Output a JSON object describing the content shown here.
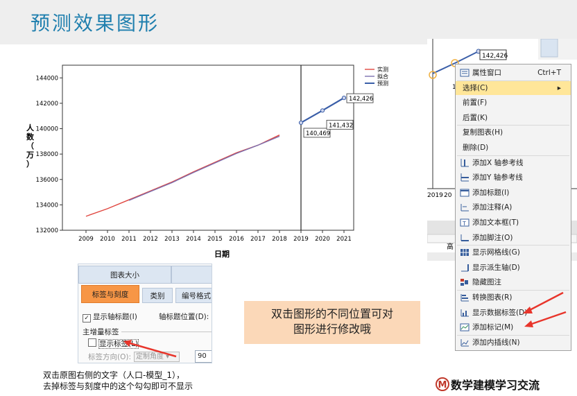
{
  "slide": {
    "title": "预测效果图形"
  },
  "chart_data": {
    "type": "line",
    "xlabel": "日期",
    "ylabel": "人数（万）",
    "x_ticks": [
      "2009",
      "2010",
      "2011",
      "2012",
      "2013",
      "2014",
      "2015",
      "2016",
      "2017",
      "2018",
      "2019",
      "2020",
      "2021"
    ],
    "y_ticks": [
      132000,
      134000,
      136000,
      138000,
      140000,
      142000,
      144000
    ],
    "ylim": [
      132000,
      145000
    ],
    "forecast_origin": "2019",
    "series": [
      {
        "name": "实测",
        "color": "#e0463f",
        "x": [
          2009,
          2010,
          2011,
          2012,
          2013,
          2014,
          2015,
          2016,
          2017,
          2018
        ],
        "y": [
          133100,
          133700,
          134400,
          135100,
          135800,
          136600,
          137350,
          138100,
          138700,
          139500
        ]
      },
      {
        "name": "拟合",
        "color": "#7b70b0",
        "x": [
          2011,
          2012,
          2013,
          2014,
          2015,
          2016,
          2017,
          2018
        ],
        "y": [
          134350,
          135050,
          135750,
          136550,
          137300,
          138050,
          138700,
          139400
        ]
      },
      {
        "name": "预测",
        "color": "#3a5ea8",
        "x": [
          2019,
          2020,
          2021
        ],
        "y": [
          140469,
          141432,
          142426
        ]
      }
    ],
    "data_labels": [
      "140,469",
      "141,432",
      "142,426"
    ],
    "legend": "top-right"
  },
  "dialog": {
    "tabs_row1": [
      "图表大小",
      ""
    ],
    "tabs_row2": [
      "标签与刻度",
      "类别",
      "编号格式"
    ],
    "show_axis_title": "显示轴标题(I)",
    "axis_title_position": "轴标题位置(D):",
    "group_label": "主增量标签",
    "show_labels": "显示标签(L)",
    "label_direction": "标签方向(O):",
    "label_direction_value": "定制角度",
    "angle_value": "90"
  },
  "caption_lines": [
    "双击原图右侧的文字（人口-模型_1），",
    "去掉标签与刻度中的这个勾勾即可不显示"
  ],
  "callout_lines": [
    "双击图形的不同位置可对",
    "图形进行修改哦"
  ],
  "screenshot": {
    "labels": [
      "142,426",
      "1"
    ],
    "x_ticks": [
      "2019",
      "20"
    ],
    "partial_text": "高"
  },
  "context_menu": {
    "items": [
      {
        "label": "属性窗口",
        "shortcut": "Ctrl+T",
        "icon": "properties-icon"
      },
      {
        "label": "选择(C)",
        "submenu": "▸",
        "highlight": true
      },
      {
        "label": "前置(F)"
      },
      {
        "label": "后置(K)"
      },
      {
        "label": "复制图表(H)"
      },
      {
        "label": "删除(D)"
      },
      {
        "label": "添加X 轴参考线",
        "icon": "x-reference-line-icon"
      },
      {
        "label": "添加Y 轴参考线",
        "icon": "y-reference-line-icon"
      },
      {
        "label": "添加标题(I)",
        "icon": "title-icon"
      },
      {
        "label": "添加注释(A)",
        "icon": "annotation-icon"
      },
      {
        "label": "添加文本框(T)",
        "icon": "textbox-icon"
      },
      {
        "label": "添加脚注(O)",
        "icon": "footnote-icon"
      },
      {
        "label": "显示网格线(G)",
        "icon": "gridlines-icon"
      },
      {
        "label": "显示派生轴(D)",
        "icon": "derived-axis-icon"
      },
      {
        "label": "隐藏图注",
        "icon": "legend-icon"
      },
      {
        "label": "转换图表(R)",
        "icon": "transpose-icon"
      },
      {
        "label": "显示数据标签(D)",
        "icon": "data-labels-icon"
      },
      {
        "label": "添加标记(M)",
        "icon": "markers-icon"
      },
      {
        "label": "添加内插线(N)",
        "icon": "interpolation-icon"
      }
    ]
  },
  "logo": {
    "mark": "M",
    "text": "数学建模学习交流"
  },
  "colors": {
    "title": "#1f7fae",
    "highlight": "#ffe699",
    "callout": "#fbd8b8",
    "tab_active": "#f79646",
    "arrow": "#e8352b"
  }
}
